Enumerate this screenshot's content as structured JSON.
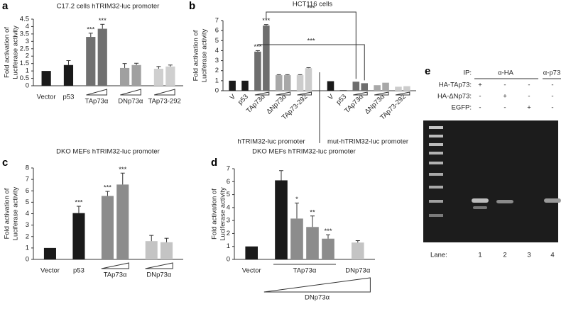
{
  "chart_data": [
    {
      "panel": "a",
      "type": "bar",
      "title": "C17.2 cells hTRIM32-luc promoter",
      "ylabel": [
        "Fold activation of",
        "Luciferase activity"
      ],
      "ylim": [
        0,
        4.5
      ],
      "yticks": [
        0,
        0.5,
        1,
        1.5,
        2,
        2.5,
        3,
        3.5,
        4,
        4.5
      ],
      "groups": [
        {
          "label": "Vector",
          "color": "#1a1a1a",
          "values": [
            1
          ]
        },
        {
          "label": "p53",
          "color": "#1a1a1a",
          "values": [
            1.4
          ],
          "errors": [
            0.3
          ]
        },
        {
          "label": "TAp73α",
          "color": "#707070",
          "values": [
            3.3,
            3.85
          ],
          "errors": [
            0.25,
            0.3
          ],
          "stars": [
            "***",
            "***"
          ]
        },
        {
          "label": "DNp73α",
          "color": "#a0a0a0",
          "values": [
            1.2,
            1.4
          ],
          "errors": [
            0.3,
            0.12
          ]
        },
        {
          "label": "TAp73-292",
          "color": "#cfcfcf",
          "values": [
            1.15,
            1.3
          ],
          "errors": [
            0.15,
            0.1
          ]
        }
      ]
    },
    {
      "panel": "b",
      "type": "bar",
      "title": "HCT116 cells",
      "ylabel": [
        "Fold activation of",
        "Luciferase activity"
      ],
      "ylim": [
        0,
        7
      ],
      "yticks": [
        0,
        1,
        2,
        3,
        4,
        5,
        6,
        7
      ],
      "comparisons": [
        "***",
        "***"
      ],
      "sections": [
        {
          "label": "hTRIM32-luc promoter",
          "groups": [
            {
              "label": "V",
              "color": "#1a1a1a",
              "values": [
                1
              ]
            },
            {
              "label": "p53",
              "color": "#1a1a1a",
              "values": [
                1
              ]
            },
            {
              "label": "TAp73α",
              "color": "#6e6e6e",
              "values": [
                3.9,
                6.5
              ],
              "errors": [
                0.1,
                0.1
              ],
              "stars": [
                "***",
                "***"
              ]
            },
            {
              "label": "ΔNp73α",
              "color": "#a8a8a8",
              "values": [
                1.55,
                1.55
              ],
              "errors": [
                0.05,
                0.05
              ]
            },
            {
              "label": "TAp73-292",
              "color": "#cccccc",
              "values": [
                1.55,
                2.25
              ],
              "errors": [
                0.05,
                0.05
              ]
            }
          ]
        },
        {
          "label": "mut-hTRIM32-luc promoter",
          "groups": [
            {
              "label": "V",
              "color": "#1a1a1a",
              "values": [
                0.95
              ]
            },
            {
              "label": "p53",
              "color": "#1a1a1a",
              "values": [
                0.05
              ]
            },
            {
              "label": "TAp73α",
              "color": "#6e6e6e",
              "values": [
                0.9,
                0.75
              ]
            },
            {
              "label": "ΔNp73α",
              "color": "#a8a8a8",
              "values": [
                0.55,
                0.8
              ]
            },
            {
              "label": "TAp73-292",
              "color": "#cccccc",
              "values": [
                0.4,
                0.45
              ]
            }
          ]
        }
      ]
    },
    {
      "panel": "c",
      "type": "bar",
      "title": "DKO MEFs hTRIM32-luc promoter",
      "ylabel": [
        "Fold activation of",
        "Luciferase activity"
      ],
      "ylim": [
        0,
        8
      ],
      "yticks": [
        0,
        1,
        2,
        3,
        4,
        5,
        6,
        7,
        8
      ],
      "groups": [
        {
          "label": "Vector",
          "color": "#1a1a1a",
          "values": [
            1
          ]
        },
        {
          "label": "p53",
          "color": "#1a1a1a",
          "values": [
            4.05
          ],
          "errors": [
            0.6
          ],
          "stars": [
            "***"
          ]
        },
        {
          "label": "TAp73α",
          "color": "#8c8c8c",
          "values": [
            5.55,
            6.55
          ],
          "errors": [
            0.4,
            1.0
          ],
          "stars": [
            "***",
            "***"
          ]
        },
        {
          "label": "DNp73α",
          "color": "#c4c4c4",
          "values": [
            1.6,
            1.5
          ],
          "errors": [
            0.5,
            0.35
          ]
        }
      ]
    },
    {
      "panel": "d",
      "type": "bar",
      "title": "DKO MEFs hTRIM32-luc promoter",
      "ylabel": [
        "Fold activation of",
        "Luciferase activity"
      ],
      "ylim": [
        0,
        7
      ],
      "yticks": [
        0,
        1,
        2,
        3,
        4,
        5,
        6,
        7
      ],
      "wedge_label": "DNp73α",
      "groups": [
        {
          "label": "Vector",
          "color": "#1a1a1a",
          "values": [
            1
          ]
        },
        {
          "label": "TAp73α",
          "color": [
            "#1a1a1a",
            "#8c8c8c",
            "#8c8c8c",
            "#8c8c8c"
          ],
          "values": [
            6.1,
            3.15,
            2.5,
            1.6
          ],
          "errors": [
            0.75,
            1.2,
            0.85,
            0.3
          ],
          "stars": [
            null,
            "*",
            "**",
            "***"
          ]
        },
        {
          "label": "DNp73α",
          "color": "#c4c4c4",
          "values": [
            1.3
          ],
          "errors": [
            0.15
          ]
        }
      ]
    }
  ],
  "gel": {
    "panel": "e",
    "ip_label": "IP:",
    "antibodies": [
      "α-HA",
      "α-p73"
    ],
    "rows": [
      {
        "label": "HA-TAp73:",
        "signs": [
          "+",
          "-",
          "-",
          "-"
        ]
      },
      {
        "label": "HA-ΔNp73:",
        "signs": [
          "-",
          "+",
          "-",
          "-"
        ]
      },
      {
        "label": "EGFP:",
        "signs": [
          "-",
          "-",
          "+",
          "-"
        ]
      }
    ],
    "lane_label": "Lane:",
    "lanes": [
      1,
      2,
      3,
      4
    ]
  }
}
